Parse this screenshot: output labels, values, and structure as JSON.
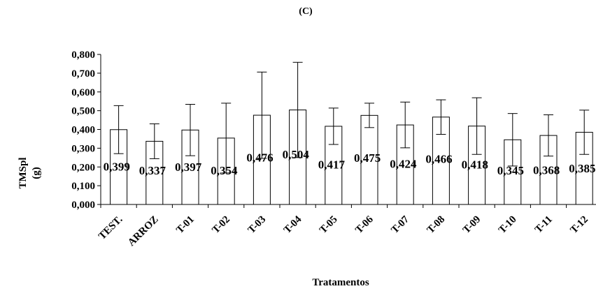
{
  "chart_data": {
    "type": "bar",
    "title": "(C)",
    "xlabel": "Tratamentos",
    "ylabel_lines": [
      "TMSpl",
      "(g)"
    ],
    "ylim": [
      0,
      0.8
    ],
    "yticks": [
      "0,000",
      "0,100",
      "0,200",
      "0,300",
      "0,400",
      "0,500",
      "0,600",
      "0,700",
      "0,800"
    ],
    "categories": [
      "TEST.",
      "ARROZ",
      "T-01",
      "T-02",
      "T-03",
      "T-04",
      "T-05",
      "T-06",
      "T-07",
      "T-08",
      "T-09",
      "T-10",
      "T-11",
      "T-12"
    ],
    "values": [
      0.399,
      0.337,
      0.397,
      0.354,
      0.476,
      0.504,
      0.417,
      0.475,
      0.424,
      0.466,
      0.418,
      0.345,
      0.368,
      0.385
    ],
    "value_labels": [
      "0,399",
      "0,337",
      "0,397",
      "0,354",
      "0,476",
      "0,504",
      "0,417",
      "0,475",
      "0,424",
      "0,466",
      "0,418",
      "0,345",
      "0,368",
      "0,385"
    ],
    "error_bars": [
      0.128,
      0.093,
      0.137,
      0.186,
      0.23,
      0.254,
      0.097,
      0.065,
      0.122,
      0.092,
      0.151,
      0.14,
      0.11,
      0.118
    ],
    "bar_fill": "#ffffff",
    "bar_stroke": "#000000",
    "grid": false,
    "legend": "none"
  }
}
